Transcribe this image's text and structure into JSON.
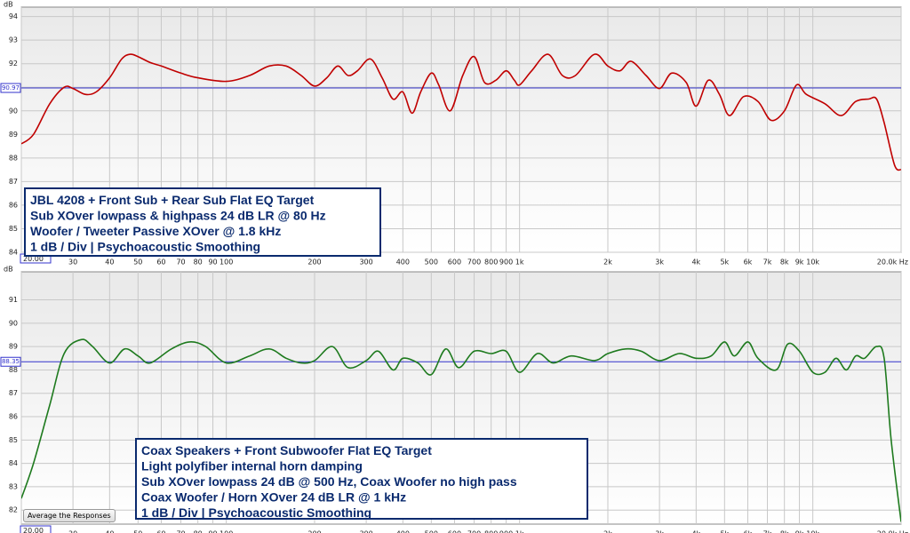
{
  "chart_data": [
    {
      "type": "line",
      "ylabel": "dB",
      "color": "#c00000",
      "log_x": true,
      "grid": true,
      "xlim": [
        20,
        20000
      ],
      "ylim": [
        84,
        94.4
      ],
      "yticks": [
        84,
        85,
        86,
        87,
        88,
        89,
        90,
        91,
        92,
        93,
        94
      ],
      "xticks": [
        {
          "value": 20,
          "label": "20.00"
        },
        30,
        40,
        50,
        60,
        70,
        80,
        90,
        100,
        200,
        300,
        400,
        500,
        600,
        700,
        800,
        900,
        {
          "value": 1000,
          "label": "1k"
        },
        {
          "value": 2000,
          "label": "2k"
        },
        {
          "value": 3000,
          "label": "3k"
        },
        {
          "value": 4000,
          "label": "4k"
        },
        {
          "value": 5000,
          "label": "5k"
        },
        {
          "value": 6000,
          "label": "6k"
        },
        {
          "value": 7000,
          "label": "7k"
        },
        {
          "value": 8000,
          "label": "8k"
        },
        {
          "value": 9000,
          "label": "9k"
        },
        {
          "value": 10000,
          "label": "10k"
        },
        {
          "value": 20000,
          "label": "20.0k Hz"
        }
      ],
      "reference_line": 90.97,
      "x": [
        20,
        22,
        25,
        28,
        30,
        33,
        36,
        40,
        44,
        47,
        50,
        55,
        60,
        70,
        80,
        100,
        120,
        140,
        160,
        180,
        200,
        220,
        240,
        260,
        280,
        310,
        340,
        370,
        400,
        430,
        460,
        500,
        530,
        580,
        640,
        700,
        760,
        830,
        900,
        960,
        1000,
        1100,
        1250,
        1400,
        1550,
        1800,
        2000,
        2200,
        2400,
        2700,
        3000,
        3300,
        3700,
        4000,
        4400,
        4800,
        5200,
        5800,
        6500,
        7200,
        8000,
        8800,
        9500,
        11000,
        12500,
        14000,
        15500,
        16500,
        17500,
        19000,
        20000
      ],
      "values": [
        88.6,
        89.0,
        90.3,
        91.0,
        90.95,
        90.7,
        90.8,
        91.4,
        92.2,
        92.4,
        92.3,
        92.05,
        91.9,
        91.6,
        91.4,
        91.25,
        91.5,
        91.9,
        91.9,
        91.5,
        91.05,
        91.4,
        91.9,
        91.5,
        91.7,
        92.2,
        91.4,
        90.5,
        90.8,
        89.9,
        90.8,
        91.6,
        91.1,
        90.0,
        91.5,
        92.3,
        91.2,
        91.3,
        91.7,
        91.3,
        91.1,
        91.7,
        92.4,
        91.5,
        91.5,
        92.4,
        91.9,
        91.7,
        92.1,
        91.5,
        90.95,
        91.6,
        91.2,
        90.2,
        91.3,
        90.7,
        89.8,
        90.6,
        90.4,
        89.6,
        90.0,
        91.1,
        90.7,
        90.3,
        89.8,
        90.4,
        90.5,
        90.5,
        89.5,
        87.7,
        87.5
      ],
      "annotation": [
        "JBL 4208 + Front Sub + Rear Sub Flat EQ Target",
        "Sub XOver lowpass & highpass 24 dB LR @ 80 Hz",
        "Woofer / Tweeter Passive XOver @ 1.8 kHz",
        "1 dB / Div | Psychoacoustic Smoothing"
      ]
    },
    {
      "type": "line",
      "ylabel": "dB",
      "color": "#1e7a1e",
      "log_x": true,
      "grid": true,
      "xlim": [
        20,
        20000
      ],
      "ylim": [
        81.4,
        92.2
      ],
      "yticks": [
        82,
        83,
        84,
        85,
        86,
        87,
        88,
        89,
        90,
        91
      ],
      "xticks": [
        {
          "value": 20,
          "label": "20.00"
        },
        30,
        40,
        50,
        60,
        70,
        80,
        90,
        100,
        200,
        300,
        400,
        500,
        600,
        700,
        800,
        900,
        {
          "value": 1000,
          "label": "1k"
        },
        {
          "value": 2000,
          "label": "2k"
        },
        {
          "value": 3000,
          "label": "3k"
        },
        {
          "value": 4000,
          "label": "4k"
        },
        {
          "value": 5000,
          "label": "5k"
        },
        {
          "value": 6000,
          "label": "6k"
        },
        {
          "value": 7000,
          "label": "7k"
        },
        {
          "value": 8000,
          "label": "8k"
        },
        {
          "value": 9000,
          "label": "9k"
        },
        {
          "value": 10000,
          "label": "10k"
        },
        {
          "value": 20000,
          "label": "20.0k Hz"
        }
      ],
      "reference_line": 88.35,
      "x": [
        20,
        22,
        25,
        28,
        32,
        35,
        40,
        45,
        50,
        55,
        65,
        75,
        85,
        100,
        120,
        140,
        160,
        180,
        200,
        230,
        260,
        300,
        330,
        370,
        400,
        450,
        500,
        560,
        620,
        700,
        800,
        900,
        1000,
        1150,
        1300,
        1500,
        1800,
        2000,
        2300,
        2600,
        3000,
        3500,
        4000,
        4500,
        5000,
        5400,
        6000,
        6500,
        7500,
        8200,
        9000,
        10000,
        11000,
        12000,
        13000,
        14000,
        15000,
        16500,
        17500,
        18500,
        20000
      ],
      "values": [
        82.5,
        84.0,
        86.5,
        88.7,
        89.3,
        89.0,
        88.3,
        88.9,
        88.6,
        88.3,
        88.9,
        89.2,
        89.0,
        88.3,
        88.6,
        88.9,
        88.5,
        88.3,
        88.4,
        89.0,
        88.1,
        88.4,
        88.8,
        88.0,
        88.5,
        88.3,
        87.8,
        88.9,
        88.1,
        88.8,
        88.7,
        88.8,
        87.9,
        88.7,
        88.3,
        88.6,
        88.4,
        88.7,
        88.9,
        88.8,
        88.4,
        88.7,
        88.5,
        88.6,
        89.2,
        88.6,
        89.2,
        88.5,
        88.0,
        89.1,
        88.8,
        87.9,
        87.9,
        88.5,
        88.0,
        88.6,
        88.5,
        89.0,
        88.5,
        85.0,
        81.5
      ],
      "annotation": [
        "Coax Speakers + Front Subwoofer Flat EQ Target",
        "Light polyfiber internal horn damping",
        "Sub XOver lowpass 24 dB @ 500 Hz, Coax Woofer no high pass",
        "Coax Woofer / Horn XOver 24 dB LR @ 1 kHz",
        "1 dB / Div | Psychoacoustic Smoothing"
      ]
    }
  ],
  "button": "Average the Responses"
}
